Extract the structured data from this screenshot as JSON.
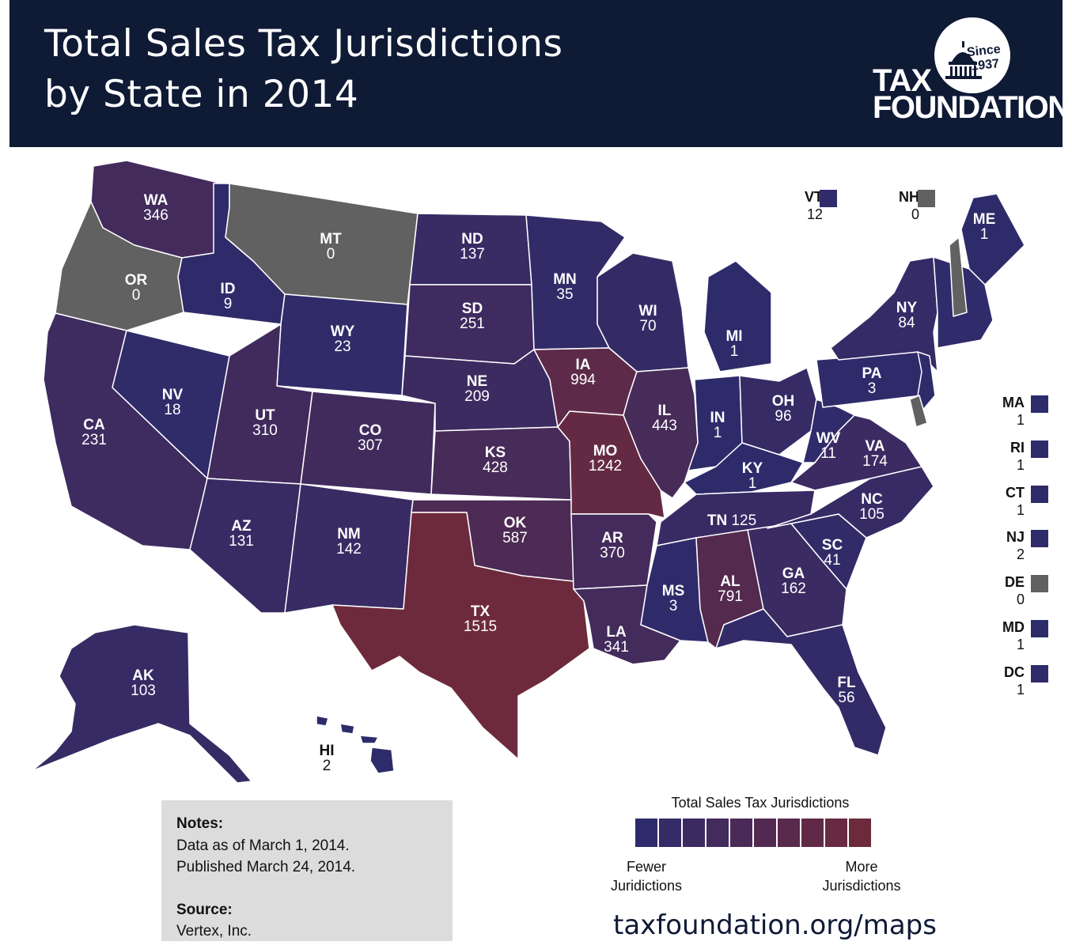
{
  "title_lines": [
    "Total Sales Tax Jurisdictions",
    "by State in 2014"
  ],
  "logo": {
    "since": "Since",
    "year": "1937",
    "line1": "TAX",
    "line2": "FOUNDATION"
  },
  "colors": {
    "header": "#0f1a35",
    "zero": "#616161",
    "low": "#2e2b6b",
    "high": "#6e2a3d"
  },
  "map_data": {
    "type": "choropleth",
    "value_label": "Total Sales Tax Jurisdictions",
    "states": [
      {
        "abbr": "WA",
        "value": 346
      },
      {
        "abbr": "OR",
        "value": 0
      },
      {
        "abbr": "CA",
        "value": 231
      },
      {
        "abbr": "ID",
        "value": 9
      },
      {
        "abbr": "NV",
        "value": 18
      },
      {
        "abbr": "MT",
        "value": 0
      },
      {
        "abbr": "WY",
        "value": 23
      },
      {
        "abbr": "UT",
        "value": 310
      },
      {
        "abbr": "AZ",
        "value": 131
      },
      {
        "abbr": "CO",
        "value": 307
      },
      {
        "abbr": "NM",
        "value": 142
      },
      {
        "abbr": "ND",
        "value": 137
      },
      {
        "abbr": "SD",
        "value": 251
      },
      {
        "abbr": "NE",
        "value": 209
      },
      {
        "abbr": "KS",
        "value": 428
      },
      {
        "abbr": "OK",
        "value": 587
      },
      {
        "abbr": "TX",
        "value": 1515
      },
      {
        "abbr": "MN",
        "value": 35
      },
      {
        "abbr": "IA",
        "value": 994
      },
      {
        "abbr": "MO",
        "value": 1242
      },
      {
        "abbr": "AR",
        "value": 370
      },
      {
        "abbr": "LA",
        "value": 341
      },
      {
        "abbr": "WI",
        "value": 70
      },
      {
        "abbr": "IL",
        "value": 443
      },
      {
        "abbr": "MI",
        "value": 1
      },
      {
        "abbr": "IN",
        "value": 1
      },
      {
        "abbr": "OH",
        "value": 96
      },
      {
        "abbr": "KY",
        "value": 1
      },
      {
        "abbr": "TN",
        "value": 125
      },
      {
        "abbr": "MS",
        "value": 3
      },
      {
        "abbr": "AL",
        "value": 791
      },
      {
        "abbr": "GA",
        "value": 162
      },
      {
        "abbr": "FL",
        "value": 56
      },
      {
        "abbr": "SC",
        "value": 41
      },
      {
        "abbr": "NC",
        "value": 105
      },
      {
        "abbr": "VA",
        "value": 174
      },
      {
        "abbr": "WV",
        "value": 11
      },
      {
        "abbr": "PA",
        "value": 3
      },
      {
        "abbr": "NY",
        "value": 84
      },
      {
        "abbr": "ME",
        "value": 1
      },
      {
        "abbr": "AK",
        "value": 103
      },
      {
        "abbr": "HI",
        "value": 2
      }
    ],
    "small_states": [
      {
        "abbr": "VT",
        "value": 12
      },
      {
        "abbr": "NH",
        "value": 0
      },
      {
        "abbr": "MA",
        "value": 1
      },
      {
        "abbr": "RI",
        "value": 1
      },
      {
        "abbr": "CT",
        "value": 1
      },
      {
        "abbr": "NJ",
        "value": 2
      },
      {
        "abbr": "DE",
        "value": 0
      },
      {
        "abbr": "MD",
        "value": 1
      },
      {
        "abbr": "DC",
        "value": 1
      }
    ]
  },
  "notes": {
    "heading": "Notes:",
    "line1": "Data as of March 1, 2014.",
    "line2": "Published March 24, 2014.",
    "source_heading": "Source:",
    "source": "Vertex, Inc."
  },
  "legend": {
    "title": "Total Sales Tax Jurisdictions",
    "fewer": [
      "Fewer",
      "Juridictions"
    ],
    "more": [
      "More",
      "Jurisdictions"
    ],
    "steps": 10
  },
  "url": "taxfoundation.org/maps"
}
